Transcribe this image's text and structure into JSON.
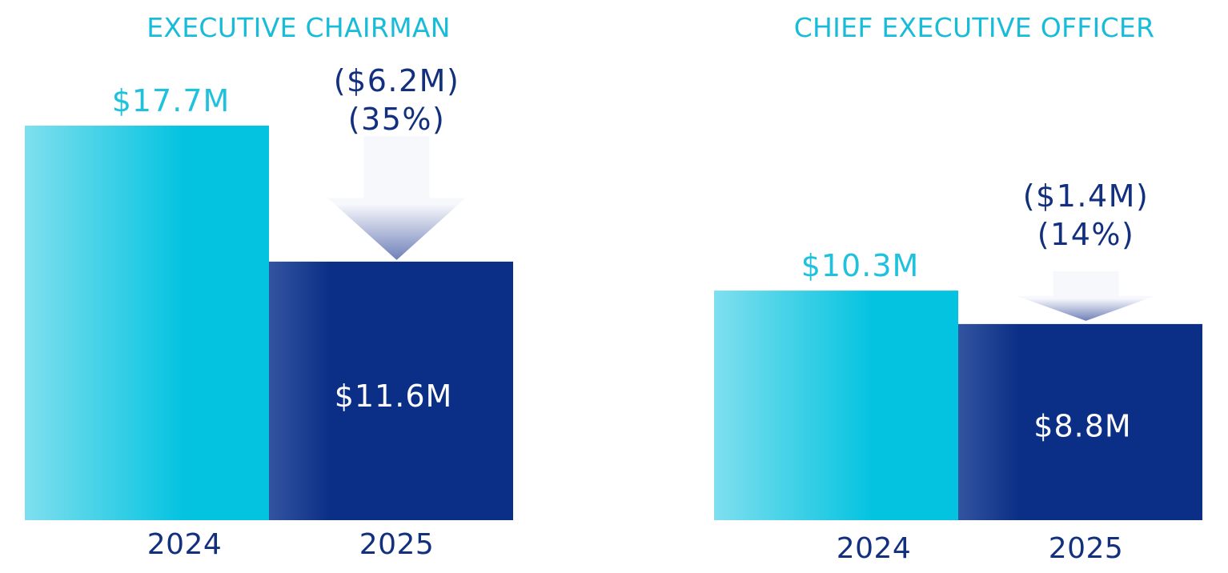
{
  "chart_data": [
    {
      "type": "bar",
      "title": "EXECUTIVE CHAIRMAN",
      "categories": [
        "2024",
        "2025"
      ],
      "values": [
        17.7,
        11.6
      ],
      "value_labels": [
        "$17.7M",
        "$11.6M"
      ],
      "change": {
        "amount": "($6.2M)",
        "percent": "(35%)"
      },
      "ylim": [
        0,
        20
      ],
      "unit": "$M",
      "xlabel": "",
      "ylabel": "",
      "grid": false
    },
    {
      "type": "bar",
      "title": "CHIEF EXECUTIVE OFFICER",
      "categories": [
        "2024",
        "2025"
      ],
      "values": [
        10.3,
        8.8
      ],
      "value_labels": [
        "$10.3M",
        "$8.8M"
      ],
      "change": {
        "amount": "($1.4M)",
        "percent": "(14%)"
      },
      "ylim": [
        0,
        20
      ],
      "unit": "$M",
      "xlabel": "",
      "ylabel": "",
      "grid": false
    }
  ],
  "colors": {
    "bar_2024_light": "#7fdfee",
    "bar_2024_dark": "#04c3e0",
    "bar_2025_light": "#3354a0",
    "bar_2025_dark": "#0b2f86",
    "title": "#18bcd9",
    "text_dark": "#13307f",
    "arrow_top": "#f7f8fc",
    "arrow_bottom": "#6f80b8"
  }
}
